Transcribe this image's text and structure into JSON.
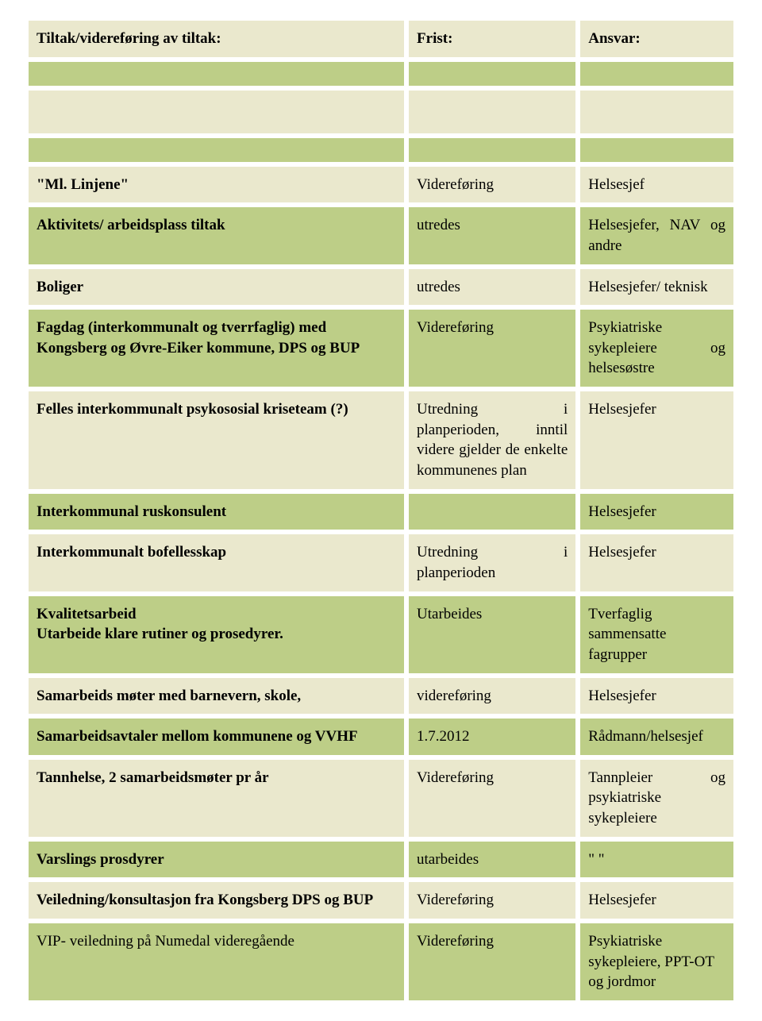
{
  "header": {
    "col1": "Tiltak/videreføring av tiltak:",
    "col2": "Frist:",
    "col3": "Ansvar:"
  },
  "rows": [
    {
      "c1": "\"Ml. Linjene\"",
      "c2": "Videreføring",
      "c3": "Helsesjef",
      "bold1": true,
      "cls": [
        "c-cream",
        "c-cream",
        "c-cream"
      ]
    },
    {
      "c1": "Aktivitets/ arbeidsplass tiltak",
      "c2": "utredes",
      "c3": "Helsesjefer, NAV og andre",
      "bold1": true,
      "cls": [
        "c-green",
        "c-green",
        "c-green"
      ],
      "justify3": true
    },
    {
      "c1": "Boliger",
      "c2": "utredes",
      "c3": "Helsesjefer/ teknisk",
      "bold1": true,
      "cls": [
        "c-cream",
        "c-cream",
        "c-cream"
      ]
    },
    {
      "c1": "Fagdag (interkommunalt og tverrfaglig) med Kongsberg og Øvre-Eiker kommune, DPS og BUP",
      "c2": "Videreføring",
      "c3": "Psykiatriske sykepleiere og helsesøstre",
      "bold1": true,
      "cls": [
        "c-green",
        "c-green",
        "c-green"
      ],
      "justify3": true
    },
    {
      "c1": "Felles interkommunalt psykososial kriseteam (?)",
      "c2": "Utredning i planperioden, inntil videre gjelder de enkelte kommunenes plan",
      "c3": "Helsesjefer",
      "bold1": true,
      "cls": [
        "c-cream",
        "c-cream",
        "c-cream"
      ],
      "justify2": true
    },
    {
      "c1": "Interkommunal ruskonsulent",
      "c2": "",
      "c3": "Helsesjefer",
      "bold1": true,
      "cls": [
        "c-green",
        "c-green",
        "c-green"
      ]
    },
    {
      "c1": "Interkommunalt bofellesskap",
      "c2": "Utredning i planperioden",
      "c3": "Helsesjefer",
      "bold1": true,
      "cls": [
        "c-cream",
        "c-cream",
        "c-cream"
      ],
      "justify2": true
    },
    {
      "c1": "Kvalitetsarbeid\nUtarbeide klare rutiner og prosedyrer.",
      "c2": "Utarbeides",
      "c3": "Tverfaglig sammensatte fagrupper",
      "bold1": true,
      "cls": [
        "c-green",
        "c-green",
        "c-green"
      ]
    },
    {
      "c1": "Samarbeids møter med barnevern, skole,",
      "c2": "videreføring",
      "c3": "Helsesjefer",
      "bold1": true,
      "cls": [
        "c-cream",
        "c-cream",
        "c-cream"
      ]
    },
    {
      "c1": "Samarbeidsavtaler mellom kommunene og VVHF",
      "c2": "1.7.2012",
      "c3": "Rådmann/helsesjef",
      "bold1": true,
      "cls": [
        "c-green",
        "c-green",
        "c-green"
      ]
    },
    {
      "c1": "Tannhelse, 2 samarbeidsmøter pr år",
      "c2": "Videreføring",
      "c3": "Tannpleier og psykiatriske sykepleiere",
      "bold1": true,
      "cls": [
        "c-cream",
        "c-cream",
        "c-cream"
      ],
      "justify3": true
    },
    {
      "c1": "Varslings prosdyrer",
      "c2": "utarbeides",
      "c3": "\"    \"",
      "bold1": true,
      "cls": [
        "c-green",
        "c-green",
        "c-green"
      ]
    },
    {
      "c1": "Veiledning/konsultasjon fra Kongsberg DPS og BUP",
      "c2": "Videreføring",
      "c3": "Helsesjefer",
      "bold1": true,
      "cls": [
        "c-cream",
        "c-cream",
        "c-cream"
      ]
    },
    {
      "c1": "VIP- veiledning  på Numedal videregående",
      "c2": "Videreføring",
      "c3": "Psykiatriske sykepleiere, PPT-OT og jordmor",
      "bold1": false,
      "cls": [
        "c-green",
        "c-green",
        "c-green"
      ]
    }
  ]
}
